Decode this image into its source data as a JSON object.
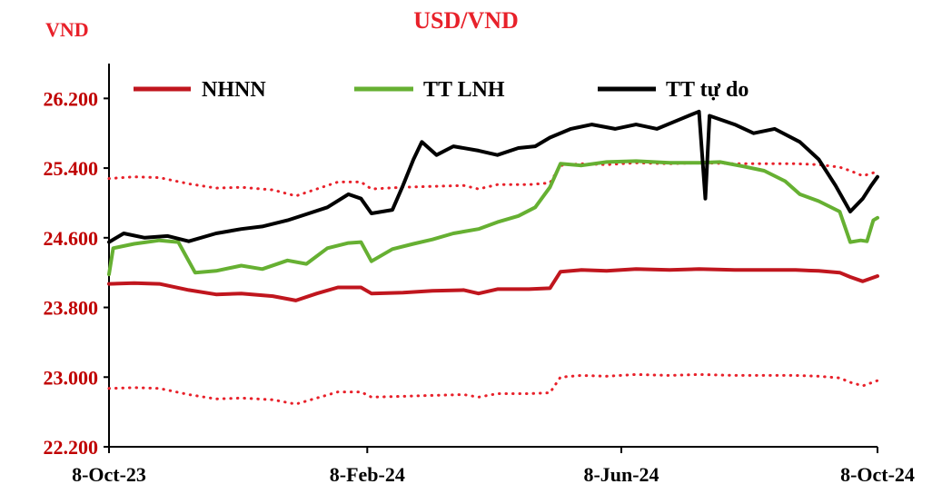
{
  "chart_data": {
    "type": "line",
    "title": "USD/VND",
    "ylabel": "VND",
    "ylim": [
      22200,
      26600
    ],
    "y_ticks": [
      22200,
      23000,
      23800,
      24600,
      25400,
      26200
    ],
    "y_tick_labels": [
      "22.200",
      "23.000",
      "23.800",
      "24.600",
      "25.400",
      "26.200"
    ],
    "x_ticks": [
      "8-Oct-23",
      "8-Feb-24",
      "8-Jun-24",
      "8-Oct-24"
    ],
    "x_range": [
      "2023-10-08",
      "2024-10-08"
    ],
    "legend_position": "top",
    "series": [
      {
        "name": "NHNN",
        "color": "#c0161e",
        "style": "solid",
        "points": [
          [
            "2023-10-08",
            24070
          ],
          [
            "2023-10-20",
            24080
          ],
          [
            "2023-11-01",
            24070
          ],
          [
            "2023-11-15",
            24000
          ],
          [
            "2023-11-28",
            23950
          ],
          [
            "2023-12-10",
            23960
          ],
          [
            "2023-12-25",
            23930
          ],
          [
            "2024-01-05",
            23880
          ],
          [
            "2024-01-15",
            23960
          ],
          [
            "2024-01-25",
            24030
          ],
          [
            "2024-02-05",
            24030
          ],
          [
            "2024-02-10",
            23960
          ],
          [
            "2024-02-25",
            23970
          ],
          [
            "2024-03-10",
            23990
          ],
          [
            "2024-03-25",
            24000
          ],
          [
            "2024-04-01",
            23960
          ],
          [
            "2024-04-10",
            24010
          ],
          [
            "2024-04-25",
            24010
          ],
          [
            "2024-05-05",
            24020
          ],
          [
            "2024-05-10",
            24210
          ],
          [
            "2024-05-20",
            24230
          ],
          [
            "2024-06-01",
            24220
          ],
          [
            "2024-06-15",
            24240
          ],
          [
            "2024-07-01",
            24230
          ],
          [
            "2024-07-15",
            24240
          ],
          [
            "2024-08-01",
            24230
          ],
          [
            "2024-08-15",
            24230
          ],
          [
            "2024-08-30",
            24230
          ],
          [
            "2024-09-10",
            24220
          ],
          [
            "2024-09-20",
            24200
          ],
          [
            "2024-09-25",
            24150
          ],
          [
            "2024-10-01",
            24100
          ],
          [
            "2024-10-08",
            24160
          ]
        ]
      },
      {
        "name": "Upper band",
        "color": "#e8212a",
        "style": "dotted",
        "points": [
          [
            "2023-10-08",
            25280
          ],
          [
            "2023-10-20",
            25300
          ],
          [
            "2023-11-01",
            25290
          ],
          [
            "2023-11-15",
            25220
          ],
          [
            "2023-11-28",
            25170
          ],
          [
            "2023-12-10",
            25180
          ],
          [
            "2023-12-25",
            25150
          ],
          [
            "2024-01-05",
            25080
          ],
          [
            "2024-01-15",
            25160
          ],
          [
            "2024-01-25",
            25240
          ],
          [
            "2024-02-05",
            25240
          ],
          [
            "2024-02-10",
            25160
          ],
          [
            "2024-02-25",
            25180
          ],
          [
            "2024-03-10",
            25190
          ],
          [
            "2024-03-25",
            25200
          ],
          [
            "2024-04-01",
            25160
          ],
          [
            "2024-04-10",
            25210
          ],
          [
            "2024-04-25",
            25210
          ],
          [
            "2024-05-05",
            25230
          ],
          [
            "2024-05-10",
            25430
          ],
          [
            "2024-05-20",
            25450
          ],
          [
            "2024-06-01",
            25440
          ],
          [
            "2024-06-15",
            25460
          ],
          [
            "2024-07-01",
            25450
          ],
          [
            "2024-07-15",
            25460
          ],
          [
            "2024-08-01",
            25450
          ],
          [
            "2024-08-15",
            25450
          ],
          [
            "2024-08-30",
            25450
          ],
          [
            "2024-09-10",
            25440
          ],
          [
            "2024-09-20",
            25410
          ],
          [
            "2024-09-25",
            25370
          ],
          [
            "2024-10-01",
            25310
          ],
          [
            "2024-10-08",
            25360
          ]
        ]
      },
      {
        "name": "Lower band",
        "color": "#e8212a",
        "style": "dotted",
        "points": [
          [
            "2023-10-08",
            22870
          ],
          [
            "2023-10-20",
            22880
          ],
          [
            "2023-11-01",
            22870
          ],
          [
            "2023-11-15",
            22800
          ],
          [
            "2023-11-28",
            22750
          ],
          [
            "2023-12-10",
            22760
          ],
          [
            "2023-12-25",
            22740
          ],
          [
            "2024-01-05",
            22690
          ],
          [
            "2024-01-15",
            22760
          ],
          [
            "2024-01-25",
            22830
          ],
          [
            "2024-02-05",
            22830
          ],
          [
            "2024-02-10",
            22770
          ],
          [
            "2024-02-25",
            22780
          ],
          [
            "2024-03-10",
            22790
          ],
          [
            "2024-03-25",
            22800
          ],
          [
            "2024-04-01",
            22770
          ],
          [
            "2024-04-10",
            22810
          ],
          [
            "2024-04-25",
            22810
          ],
          [
            "2024-05-05",
            22820
          ],
          [
            "2024-05-10",
            23000
          ],
          [
            "2024-05-20",
            23020
          ],
          [
            "2024-06-01",
            23010
          ],
          [
            "2024-06-15",
            23030
          ],
          [
            "2024-07-01",
            23020
          ],
          [
            "2024-07-15",
            23030
          ],
          [
            "2024-08-01",
            23020
          ],
          [
            "2024-08-15",
            23020
          ],
          [
            "2024-08-30",
            23020
          ],
          [
            "2024-09-10",
            23010
          ],
          [
            "2024-09-20",
            22990
          ],
          [
            "2024-09-25",
            22940
          ],
          [
            "2024-10-01",
            22900
          ],
          [
            "2024-10-08",
            22960
          ]
        ]
      },
      {
        "name": "TT LNH",
        "color": "#66b032",
        "style": "solid",
        "points": [
          [
            "2023-10-08",
            24180
          ],
          [
            "2023-10-10",
            24480
          ],
          [
            "2023-10-20",
            24530
          ],
          [
            "2023-11-01",
            24570
          ],
          [
            "2023-11-10",
            24550
          ],
          [
            "2023-11-18",
            24200
          ],
          [
            "2023-11-28",
            24220
          ],
          [
            "2023-12-10",
            24280
          ],
          [
            "2023-12-20",
            24240
          ],
          [
            "2024-01-01",
            24340
          ],
          [
            "2024-01-10",
            24300
          ],
          [
            "2024-01-20",
            24480
          ],
          [
            "2024-01-30",
            24540
          ],
          [
            "2024-02-05",
            24550
          ],
          [
            "2024-02-10",
            24330
          ],
          [
            "2024-02-20",
            24470
          ],
          [
            "2024-03-01",
            24530
          ],
          [
            "2024-03-10",
            24580
          ],
          [
            "2024-03-20",
            24650
          ],
          [
            "2024-04-01",
            24700
          ],
          [
            "2024-04-10",
            24780
          ],
          [
            "2024-04-20",
            24850
          ],
          [
            "2024-04-28",
            24950
          ],
          [
            "2024-05-05",
            25180
          ],
          [
            "2024-05-10",
            25450
          ],
          [
            "2024-05-20",
            25430
          ],
          [
            "2024-06-01",
            25470
          ],
          [
            "2024-06-15",
            25480
          ],
          [
            "2024-07-01",
            25460
          ],
          [
            "2024-07-15",
            25460
          ],
          [
            "2024-07-25",
            25470
          ],
          [
            "2024-08-05",
            25420
          ],
          [
            "2024-08-15",
            25370
          ],
          [
            "2024-08-25",
            25250
          ],
          [
            "2024-09-01",
            25100
          ],
          [
            "2024-09-10",
            25020
          ],
          [
            "2024-09-20",
            24900
          ],
          [
            "2024-09-25",
            24550
          ],
          [
            "2024-09-30",
            24570
          ],
          [
            "2024-10-03",
            24560
          ],
          [
            "2024-10-06",
            24800
          ],
          [
            "2024-10-08",
            24830
          ]
        ]
      },
      {
        "name": "TT tự do",
        "color": "#000000",
        "style": "solid",
        "points": [
          [
            "2023-10-08",
            24550
          ],
          [
            "2023-10-15",
            24650
          ],
          [
            "2023-10-25",
            24600
          ],
          [
            "2023-11-05",
            24620
          ],
          [
            "2023-11-15",
            24560
          ],
          [
            "2023-11-28",
            24650
          ],
          [
            "2023-12-10",
            24700
          ],
          [
            "2023-12-20",
            24730
          ],
          [
            "2024-01-01",
            24800
          ],
          [
            "2024-01-10",
            24870
          ],
          [
            "2024-01-20",
            24950
          ],
          [
            "2024-01-30",
            25100
          ],
          [
            "2024-02-05",
            25050
          ],
          [
            "2024-02-10",
            24880
          ],
          [
            "2024-02-20",
            24920
          ],
          [
            "2024-02-25",
            25200
          ],
          [
            "2024-03-01",
            25500
          ],
          [
            "2024-03-05",
            25700
          ],
          [
            "2024-03-12",
            25550
          ],
          [
            "2024-03-20",
            25650
          ],
          [
            "2024-04-01",
            25600
          ],
          [
            "2024-04-10",
            25550
          ],
          [
            "2024-04-20",
            25630
          ],
          [
            "2024-04-28",
            25650
          ],
          [
            "2024-05-05",
            25750
          ],
          [
            "2024-05-15",
            25850
          ],
          [
            "2024-05-25",
            25900
          ],
          [
            "2024-06-05",
            25850
          ],
          [
            "2024-06-15",
            25900
          ],
          [
            "2024-06-25",
            25850
          ],
          [
            "2024-07-05",
            25950
          ],
          [
            "2024-07-15",
            26050
          ],
          [
            "2024-07-18",
            25050
          ],
          [
            "2024-07-20",
            26000
          ],
          [
            "2024-08-01",
            25900
          ],
          [
            "2024-08-10",
            25800
          ],
          [
            "2024-08-20",
            25850
          ],
          [
            "2024-09-01",
            25700
          ],
          [
            "2024-09-10",
            25500
          ],
          [
            "2024-09-18",
            25200
          ],
          [
            "2024-09-25",
            24900
          ],
          [
            "2024-10-01",
            25050
          ],
          [
            "2024-10-05",
            25200
          ],
          [
            "2024-10-08",
            25300
          ]
        ]
      }
    ]
  }
}
